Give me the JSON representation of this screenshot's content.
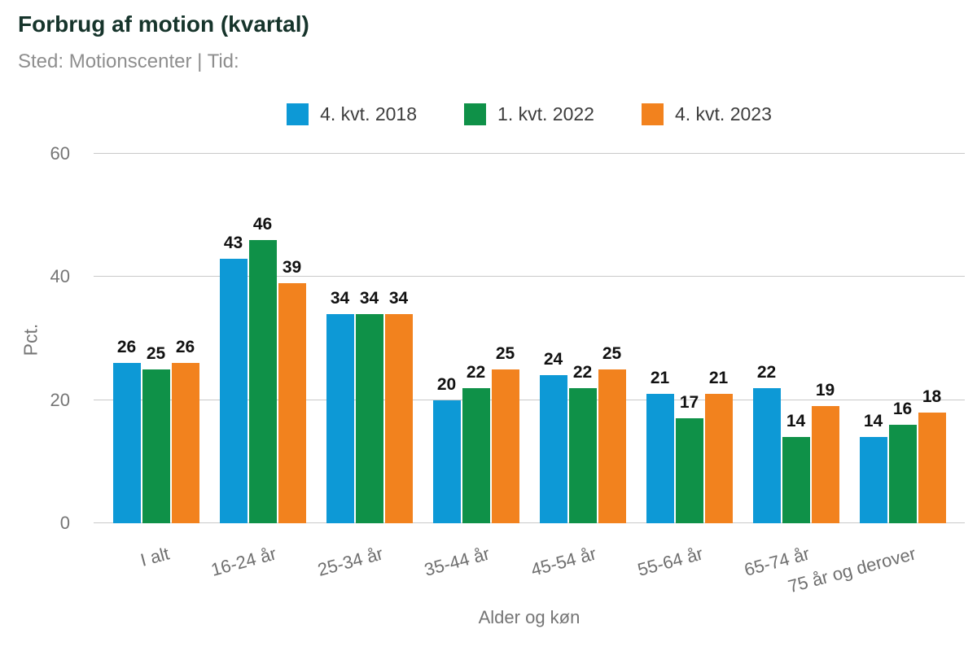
{
  "header": {
    "title": "Forbrug af motion (kvartal)",
    "subtitle": "Sted: Motionscenter | Tid:"
  },
  "colors": {
    "title_text": "#16342b",
    "subtitle_text": "#8e8e8e",
    "axis_text": "#757575",
    "grid": "#c9c9c9",
    "value_label": "#111111",
    "series_blue": "#0d99d6",
    "series_green": "#0f9148",
    "series_orange": "#f2821e"
  },
  "chart_data": {
    "type": "bar",
    "title": "Forbrug af motion (kvartal)",
    "subtitle": "Sted: Motionscenter | Tid:",
    "categories": [
      "I alt",
      "16-24 år",
      "25-34 år",
      "35-44 år",
      "45-54 år",
      "55-64 år",
      "65-74 år",
      "75 år og derover"
    ],
    "series": [
      {
        "name": "4. kvt. 2018",
        "color": "#0d99d6",
        "values": [
          26,
          43,
          34,
          20,
          24,
          21,
          22,
          14
        ]
      },
      {
        "name": "1. kvt. 2022",
        "color": "#0f9148",
        "values": [
          25,
          46,
          34,
          22,
          22,
          17,
          14,
          16
        ]
      },
      {
        "name": "4. kvt. 2023",
        "color": "#f2821e",
        "values": [
          26,
          39,
          34,
          25,
          25,
          21,
          19,
          18
        ]
      }
    ],
    "xlabel": "Alder og køn",
    "ylabel": "Pct.",
    "yticks": [
      0,
      20,
      40,
      60
    ],
    "ylim": [
      0,
      60
    ],
    "grid": true,
    "legend_position": "top",
    "value_labels": true,
    "xlabel_rotation_deg": -15
  }
}
